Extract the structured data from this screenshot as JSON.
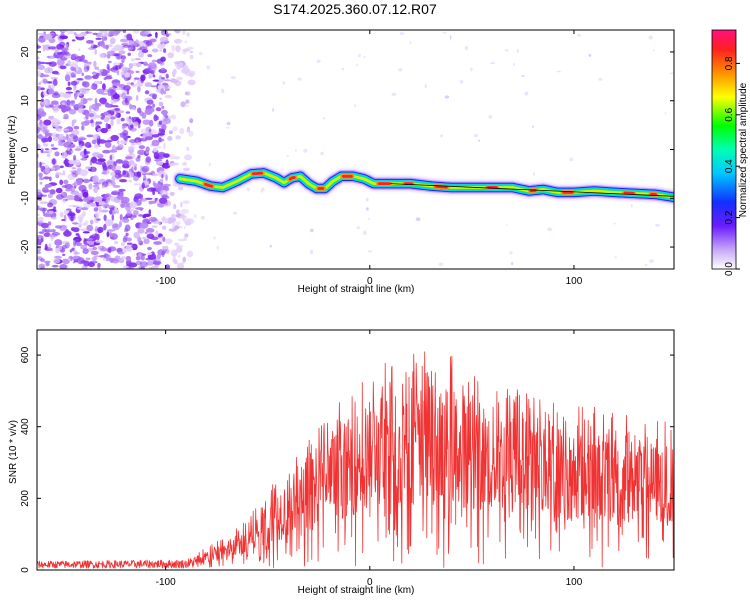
{
  "title": "S174.2025.360.07.12.R07",
  "spectrogram": {
    "xlabel": "Height of straight line (km)",
    "ylabel": "Frequency (Hz)",
    "xlim": [
      -163,
      149
    ],
    "ylim": [
      -24.5,
      24.5
    ],
    "xticks": [
      {
        "v": -100,
        "label": "-100"
      },
      {
        "v": 0,
        "label": "0"
      },
      {
        "v": 100,
        "label": "100"
      }
    ],
    "yticks": [
      {
        "v": 20,
        "label": "20"
      },
      {
        "v": 10,
        "label": "10"
      },
      {
        "v": 0,
        "label": "0"
      },
      {
        "v": -10,
        "label": "-10"
      },
      {
        "v": -20,
        "label": "-20"
      }
    ],
    "colorbar": {
      "label": "Normalized spectral amplitude",
      "ticks": [
        {
          "v": 0.0,
          "label": "0.0"
        },
        {
          "v": 0.2,
          "label": "0.2"
        },
        {
          "v": 0.4,
          "label": "0.4"
        },
        {
          "v": 0.6,
          "label": "0.6"
        },
        {
          "v": 0.8,
          "label": "0.8"
        }
      ],
      "range": [
        0,
        0.93
      ]
    },
    "ridge_onset_km": -93,
    "ridge": [
      {
        "x": -93,
        "f": -6.0
      },
      {
        "x": -85,
        "f": -6.5
      },
      {
        "x": -78,
        "f": -7.5
      },
      {
        "x": -72,
        "f": -7.8
      },
      {
        "x": -65,
        "f": -6.5
      },
      {
        "x": -58,
        "f": -5.0
      },
      {
        "x": -52,
        "f": -4.8
      },
      {
        "x": -46,
        "f": -5.8
      },
      {
        "x": -42,
        "f": -6.8
      },
      {
        "x": -38,
        "f": -5.8
      },
      {
        "x": -34,
        "f": -5.5
      },
      {
        "x": -30,
        "f": -7.0
      },
      {
        "x": -26,
        "f": -8.0
      },
      {
        "x": -22,
        "f": -8.0
      },
      {
        "x": -18,
        "f": -6.5
      },
      {
        "x": -14,
        "f": -5.5
      },
      {
        "x": -8,
        "f": -5.5
      },
      {
        "x": -3,
        "f": -6.0
      },
      {
        "x": 2,
        "f": -7.0
      },
      {
        "x": 10,
        "f": -7.0
      },
      {
        "x": 20,
        "f": -7.0
      },
      {
        "x": 30,
        "f": -7.5
      },
      {
        "x": 40,
        "f": -7.8
      },
      {
        "x": 55,
        "f": -7.8
      },
      {
        "x": 70,
        "f": -7.8
      },
      {
        "x": 78,
        "f": -8.5
      },
      {
        "x": 85,
        "f": -8.2
      },
      {
        "x": 92,
        "f": -8.8
      },
      {
        "x": 100,
        "f": -8.8
      },
      {
        "x": 110,
        "f": -8.5
      },
      {
        "x": 120,
        "f": -8.8
      },
      {
        "x": 130,
        "f": -9.0
      },
      {
        "x": 140,
        "f": -9.2
      },
      {
        "x": 149,
        "f": -9.8
      }
    ],
    "hotspots": [
      {
        "x": -79,
        "f": -7.6,
        "w": 4
      },
      {
        "x": -55,
        "f": -5.0,
        "w": 5
      },
      {
        "x": -38,
        "f": -6.0,
        "w": 3
      },
      {
        "x": -24,
        "f": -8.0,
        "w": 3
      },
      {
        "x": -11,
        "f": -5.5,
        "w": 5
      },
      {
        "x": 7,
        "f": -7.0,
        "w": 6
      },
      {
        "x": 19,
        "f": -7.0,
        "w": 4
      },
      {
        "x": 35,
        "f": -7.6,
        "w": 6
      },
      {
        "x": 60,
        "f": -7.8,
        "w": 5
      },
      {
        "x": 80,
        "f": -8.4,
        "w": 3
      },
      {
        "x": 97,
        "f": -8.8,
        "w": 5
      },
      {
        "x": 127,
        "f": -8.9,
        "w": 5
      },
      {
        "x": 139,
        "f": -9.2,
        "w": 3
      }
    ]
  },
  "snr": {
    "xlabel": "Height of straight line (km)",
    "ylabel": "SNR (10 * v/v)",
    "xlim": [
      -163,
      149
    ],
    "ylim": [
      0,
      670
    ],
    "xticks": [
      {
        "v": -100,
        "label": "-100"
      },
      {
        "v": 0,
        "label": "0"
      },
      {
        "v": 100,
        "label": "100"
      }
    ],
    "yticks": [
      {
        "v": 0,
        "label": "0"
      },
      {
        "v": 200,
        "label": "200"
      },
      {
        "v": 400,
        "label": "400"
      },
      {
        "v": 600,
        "label": "600"
      }
    ],
    "color": "#f03232"
  },
  "chart_data": [
    {
      "type": "heatmap",
      "title": "S174.2025.360.07.12.R07",
      "xlabel": "Height of straight line (km)",
      "ylabel": "Frequency (Hz)",
      "xlim": [
        -163,
        149
      ],
      "ylim": [
        -24.5,
        24.5
      ],
      "colorbar_label": "Normalized spectral amplitude",
      "colorbar_range": [
        0,
        0.93
      ],
      "ridge_frequency_hz": [
        {
          "x": -93,
          "f": -6.0
        },
        {
          "x": -58,
          "f": -5.0
        },
        {
          "x": -26,
          "f": -8.0
        },
        {
          "x": -10,
          "f": -5.5
        },
        {
          "x": 20,
          "f": -7.0
        },
        {
          "x": 55,
          "f": -7.8
        },
        {
          "x": 100,
          "f": -8.8
        },
        {
          "x": 149,
          "f": -9.8
        }
      ]
    },
    {
      "type": "line",
      "xlabel": "Height of straight line (km)",
      "ylabel": "SNR (10 * v/v)",
      "xlim": [
        -163,
        149
      ],
      "ylim": [
        0,
        670
      ],
      "envelope": [
        {
          "x": -163,
          "y": 25
        },
        {
          "x": -90,
          "y": 30
        },
        {
          "x": -75,
          "y": 80
        },
        {
          "x": -60,
          "y": 140
        },
        {
          "x": -45,
          "y": 270
        },
        {
          "x": -20,
          "y": 440
        },
        {
          "x": 0,
          "y": 560
        },
        {
          "x": 20,
          "y": 620
        },
        {
          "x": 40,
          "y": 600
        },
        {
          "x": 60,
          "y": 540
        },
        {
          "x": 80,
          "y": 500
        },
        {
          "x": 100,
          "y": 470
        },
        {
          "x": 130,
          "y": 430
        },
        {
          "x": 149,
          "y": 410
        }
      ]
    }
  ]
}
